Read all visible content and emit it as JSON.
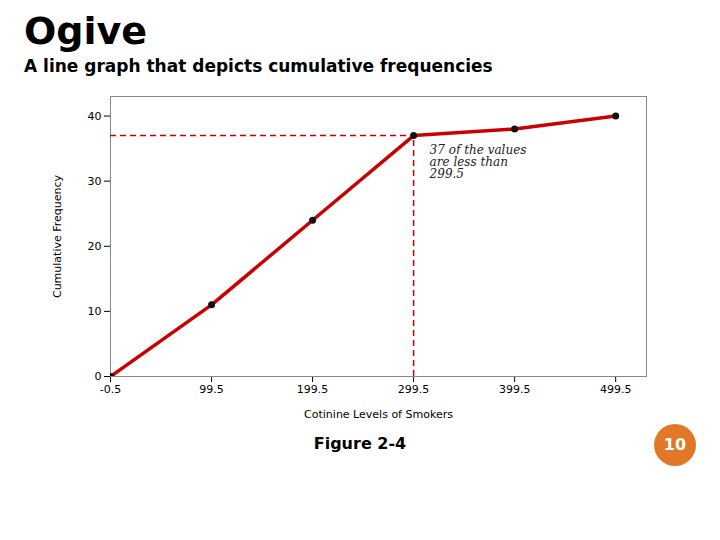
{
  "chart_data": {
    "type": "line",
    "title": "Ogive",
    "subtitle": "A line graph that depicts cumulative frequencies",
    "figure_label": "Figure 2-4",
    "page_number": "10",
    "x_label": "Cotinine Levels of Smokers",
    "y_label": "Cumulative Frequency",
    "x": [
      -0.5,
      99.5,
      199.5,
      299.5,
      399.5,
      499.5
    ],
    "values": [
      0,
      11,
      24,
      37,
      38,
      40
    ],
    "color": "#cc0000",
    "marker": "o",
    "xlim": [
      -0.5,
      530
    ],
    "ylim": [
      0,
      43
    ],
    "xticks": [
      -0.5,
      99.5,
      199.5,
      299.5,
      399.5,
      499.5
    ],
    "yticks": [
      0,
      10,
      20,
      30,
      40
    ],
    "annotations": [
      {
        "text": "37 of the values\nare less than\n299.5",
        "x": 299.5,
        "y": 37
      }
    ]
  }
}
